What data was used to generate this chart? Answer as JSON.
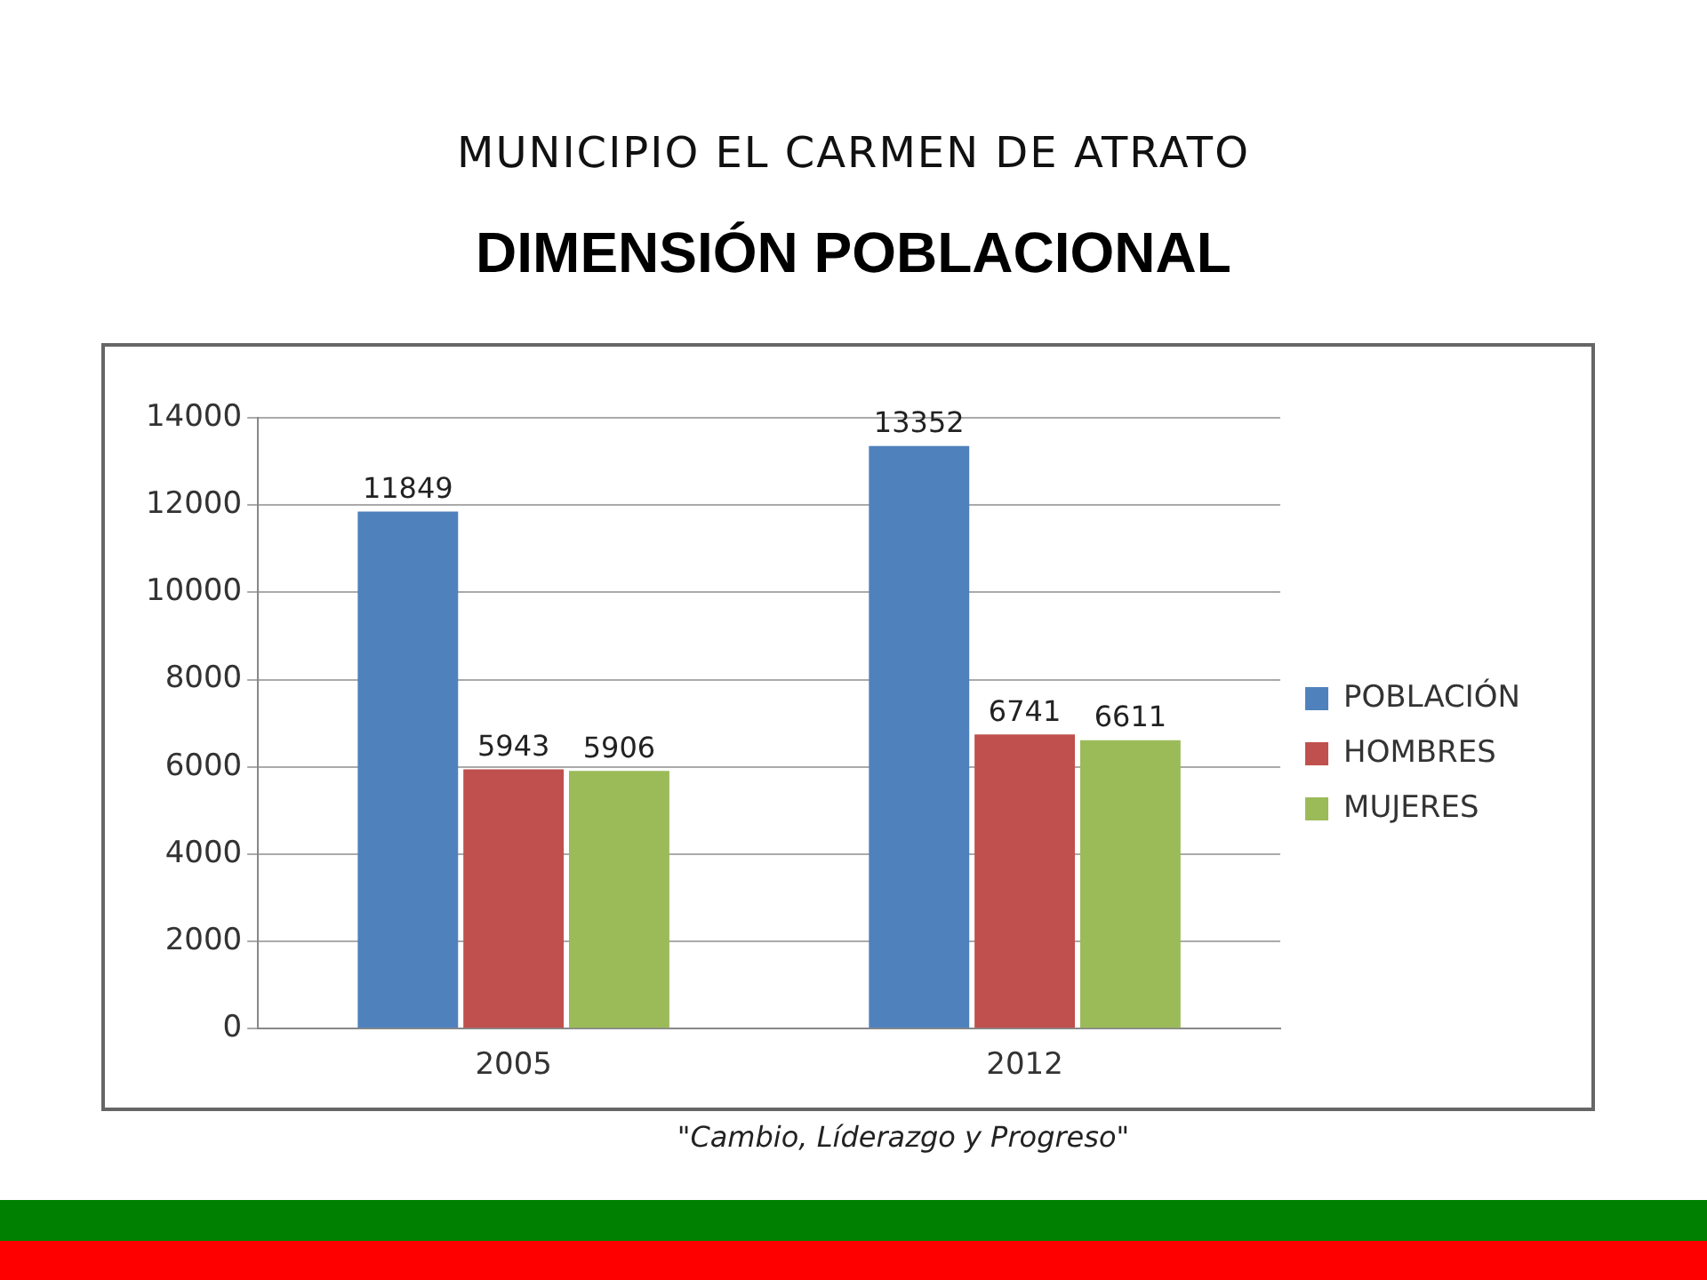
{
  "chart_data": {
    "type": "bar",
    "title": "MUNICIPIO EL CARMEN DE ATRATO",
    "subtitle": "DIMENSIÓN POBLACIONAL",
    "categories": [
      "2005",
      "2012"
    ],
    "series": [
      {
        "name": "POBLACIÓN",
        "color": "#4f81bd",
        "values": [
          11849,
          13352
        ]
      },
      {
        "name": "HOMBRES",
        "color": "#c0504d",
        "values": [
          5943,
          6741
        ]
      },
      {
        "name": "MUJERES",
        "color": "#9bbb59",
        "values": [
          5906,
          6611
        ]
      }
    ],
    "ylim": [
      0,
      14000
    ],
    "yticks": [
      0,
      2000,
      4000,
      6000,
      8000,
      10000,
      12000,
      14000
    ],
    "grid": "y",
    "legend": "right",
    "data_labels": true,
    "annotations": [
      "\"Cambio, Líderazgo y Progreso\""
    ]
  }
}
